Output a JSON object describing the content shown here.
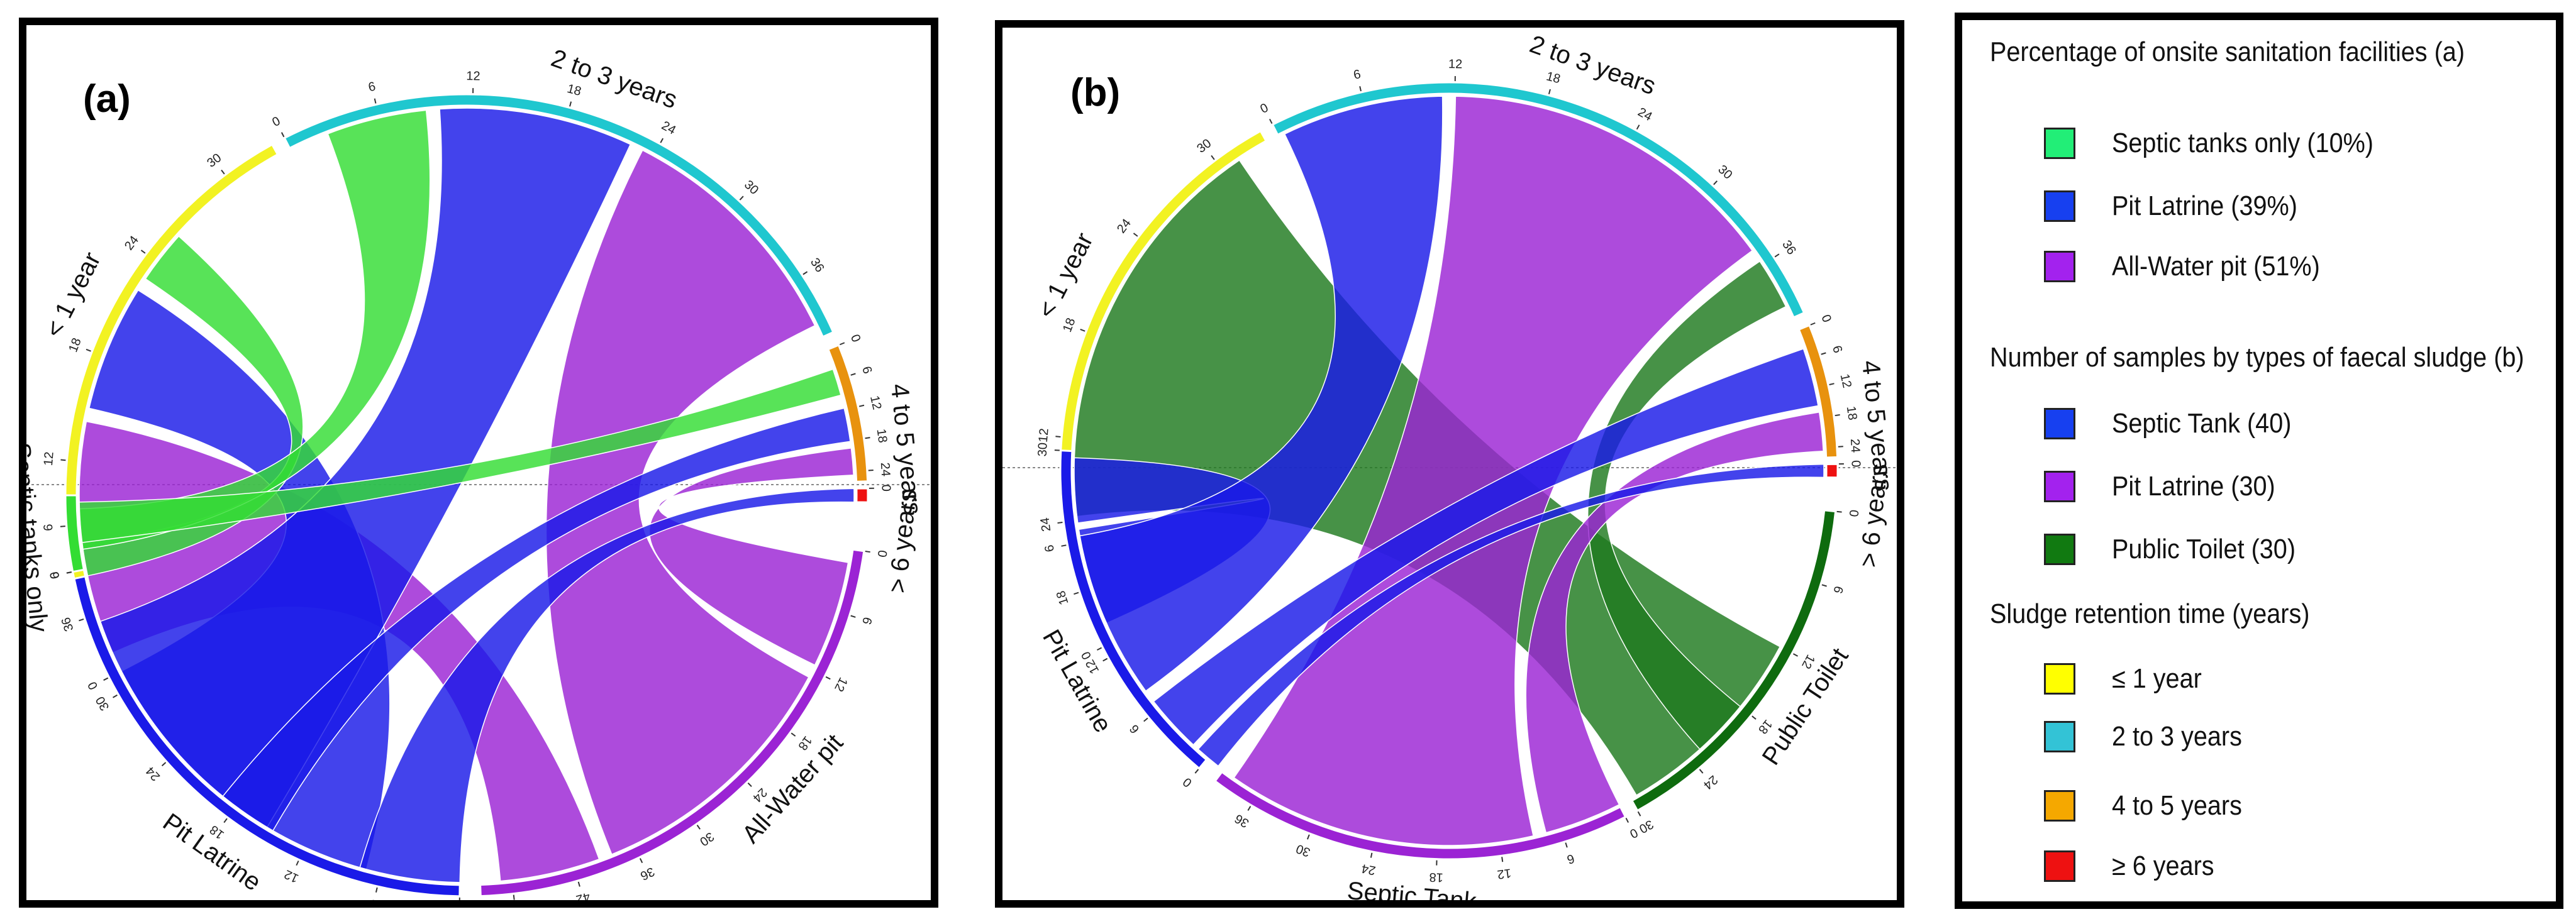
{
  "chart_data": [
    {
      "type": "chord",
      "panel_label": "(a)",
      "sectors": [
        {
          "name": "< 1 year",
          "total": 33,
          "ticks": [
            0,
            6,
            12,
            18,
            24,
            30
          ],
          "color": "#F2F222",
          "angles_deg": [
            243,
            331
          ]
        },
        {
          "name": "2 to 3 years",
          "total": 40,
          "ticks": [
            0,
            6,
            12,
            18,
            24,
            30,
            36
          ],
          "color": "#1FC7CF",
          "angles_deg": [
            333,
            426
          ]
        },
        {
          "name": "4 to 5 years",
          "total": 26,
          "ticks": [
            0,
            6,
            12,
            18,
            24
          ],
          "color": "#E8920E",
          "angles_deg": [
            428,
            448
          ]
        },
        {
          "name": "> 6 years",
          "total": 1,
          "ticks": [
            0
          ],
          "color": "#EE1111",
          "angles_deg": [
            449,
            451
          ]
        },
        {
          "name": "All-Water pit",
          "total": 51,
          "ticks": [
            0,
            6,
            12,
            18,
            24,
            30,
            36,
            42,
            48
          ],
          "color": "#9B23D4",
          "angles_deg": [
            458,
            538
          ]
        },
        {
          "name": "Pit Latrine",
          "total": 39,
          "ticks": [
            0,
            6,
            12,
            18,
            24,
            30,
            36
          ],
          "color": "#1A1AE8",
          "angles_deg": [
            541,
            618
          ]
        },
        {
          "name": "Septic tanks only",
          "total": 10,
          "ticks": [
            0,
            6
          ],
          "color": "#33DD33",
          "angles_deg": [
            619,
            630
          ]
        }
      ],
      "links": [
        {
          "source": "< 1 year",
          "target": "All-Water pit",
          "color": "#9B23D4"
        },
        {
          "source": "< 1 year",
          "target": "Pit Latrine",
          "color": "#1A1AE8"
        },
        {
          "source": "< 1 year",
          "target": "Septic tanks only",
          "color": "#33DD33"
        },
        {
          "source": "2 to 3 years",
          "target": "Septic tanks only",
          "color": "#33DD33"
        },
        {
          "source": "2 to 3 years",
          "target": "Pit Latrine",
          "color": "#1A1AE8"
        },
        {
          "source": "2 to 3 years",
          "target": "All-Water pit",
          "color": "#9B23D4"
        },
        {
          "source": "4 to 5 years",
          "target": "Septic tanks only",
          "color": "#33DD33"
        },
        {
          "source": "4 to 5 years",
          "target": "Pit Latrine",
          "color": "#1A1AE8"
        },
        {
          "source": "4 to 5 years",
          "target": "All-Water pit",
          "color": "#9B23D4"
        },
        {
          "source": "> 6 years",
          "target": "Pit Latrine",
          "color": "#1A1AE8"
        }
      ]
    },
    {
      "type": "chord",
      "panel_label": "(b)",
      "sectors": [
        {
          "name": "< 1 year",
          "total": 33,
          "ticks": [
            0,
            6,
            12,
            18,
            24,
            30
          ],
          "color": "#F2F222",
          "angles_deg": [
            243,
            331
          ]
        },
        {
          "name": "2 to 3 years",
          "total": 40,
          "ticks": [
            0,
            6,
            12,
            18,
            24,
            30,
            36
          ],
          "color": "#1FC7CF",
          "angles_deg": [
            333,
            426
          ]
        },
        {
          "name": "4 to 5 years",
          "total": 26,
          "ticks": [
            0,
            6,
            12,
            18,
            24
          ],
          "color": "#E8920E",
          "angles_deg": [
            428,
            448
          ]
        },
        {
          "name": "> 6 years",
          "total": 1,
          "ticks": [
            0
          ],
          "color": "#EE1111",
          "angles_deg": [
            449,
            451
          ]
        },
        {
          "name": "Public Toilet",
          "total": 30,
          "ticks": [
            0,
            6,
            12,
            18,
            24,
            30
          ],
          "color": "#0E6B0E",
          "angles_deg": [
            456,
            511
          ]
        },
        {
          "name": "Septic Tank",
          "total": 40,
          "ticks": [
            0,
            6,
            12,
            18,
            24,
            30,
            36
          ],
          "color": "#9B23D4",
          "angles_deg": [
            513,
            577
          ]
        },
        {
          "name": "Pit Latrine",
          "total": 30,
          "ticks": [
            0,
            6,
            12,
            18,
            24,
            30
          ],
          "color": "#1A1AE8",
          "angles_deg": [
            580,
            633
          ]
        }
      ],
      "links": [
        {
          "source": "< 1 year",
          "target": "Public Toilet",
          "color": "#1F7A1F"
        },
        {
          "source": "< 1 year",
          "target": "Pit Latrine",
          "color": "#1A1AE8"
        },
        {
          "source": "2 to 3 years",
          "target": "Pit Latrine",
          "color": "#1A1AE8"
        },
        {
          "source": "2 to 3 years",
          "target": "Septic Tank",
          "color": "#9B23D4"
        },
        {
          "source": "2 to 3 years",
          "target": "Public Toilet",
          "color": "#1F7A1F"
        },
        {
          "source": "4 to 5 years",
          "target": "Pit Latrine",
          "color": "#1A1AE8"
        },
        {
          "source": "4 to 5 years",
          "target": "Septic Tank",
          "color": "#9B23D4"
        },
        {
          "source": "> 6 years",
          "target": "Pit Latrine",
          "color": "#1A1AE8"
        }
      ]
    }
  ],
  "legend": {
    "sections": [
      {
        "heading": "Percentage of onsite sanitation facilities (a)",
        "items": [
          {
            "label": "Septic tanks only  (10%)",
            "color": "#22EE77"
          },
          {
            "label": "Pit Latrine  (39%)",
            "color": "#1740F0"
          },
          {
            "label": "All-Water pit  (51%)",
            "color": "#A322EE"
          }
        ]
      },
      {
        "heading": "Number of samples by types of faecal sludge (b)",
        "items": [
          {
            "label": "Septic Tank  (40)",
            "color": "#1740F0"
          },
          {
            "label": "Pit Latrine  (30)",
            "color": "#A322EE"
          },
          {
            "label": "Public Toilet  (30)",
            "color": "#117A11"
          }
        ]
      },
      {
        "heading": "Sludge retention time (years)",
        "items": [
          {
            "label": "≤ 1 year",
            "color": "#FFFF00"
          },
          {
            "label": "2 to 3 years",
            "color": "#33C3D6"
          },
          {
            "label": "4 to 5 years",
            "color": "#F5A800"
          },
          {
            "label": "≥ 6 years",
            "color": "#EE1111"
          }
        ]
      }
    ]
  }
}
